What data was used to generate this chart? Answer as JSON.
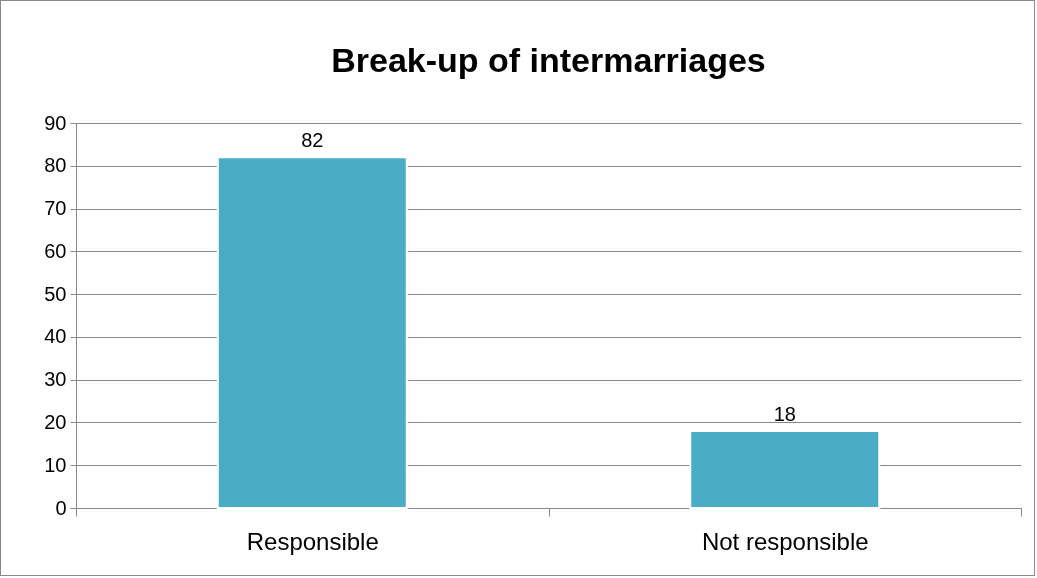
{
  "chart_data": {
    "type": "bar",
    "title": "Break-up of intermarriages",
    "categories": [
      "Responsible",
      "Not responsible"
    ],
    "values": [
      82,
      18
    ],
    "color": "#4bacc6",
    "ylim": [
      0,
      90
    ],
    "yticks": [
      0,
      10,
      20,
      30,
      40,
      50,
      60,
      70,
      80,
      90
    ],
    "grid": "y",
    "data_labels": true
  }
}
